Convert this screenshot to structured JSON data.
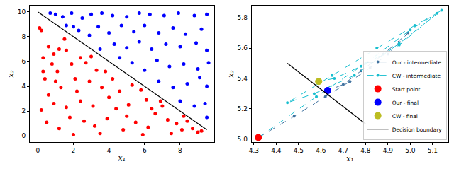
{
  "chart_data": [
    {
      "type": "scatter",
      "x_label": "x₁",
      "y_label": "x₂",
      "xlim": [
        -0.45,
        9.9
      ],
      "ylim": [
        -0.5,
        10.5
      ],
      "xticks": [
        0,
        2,
        4,
        6,
        8
      ],
      "yticks": [
        0,
        2,
        4,
        6,
        8,
        10
      ],
      "grid": false,
      "series": [
        {
          "type": "scatter",
          "color": "#ff0000",
          "marker": "circle",
          "x": [
            0.1,
            0.2,
            0.6,
            0.3,
            0.9,
            1.2,
            1.6,
            0.8,
            0.4,
            1.1,
            1.9,
            2.4,
            2.7,
            0.6,
            1.3,
            2.1,
            2.9,
            3.3,
            3.8,
            0.2,
            0.9,
            1.6,
            2.4,
            3.1,
            3.6,
            4.2,
            4.6,
            0.5,
            1.2,
            1.8,
            2.6,
            3.2,
            3.9,
            4.4,
            5.1,
            5.3,
            5.8,
            6.1,
            4.8,
            5.5,
            6.2,
            6.6,
            7.0,
            7.3,
            7.8,
            8.1,
            8.4,
            8.7,
            9.0,
            9.2,
            2.0,
            3.5,
            5.9,
            7.5,
            6.9,
            4.0,
            1.0,
            0.3,
            2.2,
            5.0,
            6.4,
            8.2,
            3.0,
            1.5
          ],
          "y": [
            8.7,
            8.5,
            7.2,
            6.3,
            6.6,
            7.0,
            6.9,
            5.8,
            4.6,
            5.2,
            5.8,
            6.3,
            5.9,
            3.3,
            3.9,
            4.6,
            4.4,
            5.3,
            5.2,
            2.1,
            2.6,
            2.3,
            2.8,
            2.4,
            3.9,
            4.6,
            3.6,
            1.1,
            0.6,
            1.5,
            1.2,
            0.8,
            1.4,
            2.2,
            2.5,
            4.1,
            3.7,
            2.9,
            0.5,
            1.1,
            0.7,
            1.8,
            2.4,
            1.3,
            1.0,
            0.5,
            1.2,
            0.6,
            0.3,
            0.4,
            0.1,
            0.2,
            0.1,
            0.2,
            2.8,
            3.1,
            4.4,
            5.2,
            3.6,
            1.6,
            2.2,
            1.6,
            6.4,
            7.8
          ]
        },
        {
          "type": "scatter",
          "color": "#0000ff",
          "marker": "circle",
          "x": [
            0.7,
            1.0,
            1.4,
            1.9,
            2.5,
            3.0,
            3.6,
            4.2,
            5.0,
            5.7,
            6.3,
            7.1,
            7.9,
            8.8,
            9.5,
            1.6,
            2.3,
            2.9,
            3.4,
            4.0,
            4.7,
            5.4,
            6.0,
            6.8,
            7.6,
            8.3,
            9.2,
            3.5,
            4.3,
            5.0,
            5.7,
            6.4,
            7.2,
            8.0,
            8.9,
            9.5,
            5.3,
            6.0,
            6.7,
            7.4,
            8.2,
            9.0,
            9.6,
            6.8,
            7.6,
            8.4,
            9.1,
            9.5,
            8.0,
            8.8,
            9.4,
            9.5,
            4.6,
            2.0
          ],
          "y": [
            9.9,
            9.8,
            9.6,
            9.9,
            9.5,
            9.8,
            9.9,
            9.7,
            9.6,
            9.9,
            9.8,
            9.7,
            9.9,
            9.7,
            9.8,
            8.9,
            8.5,
            8.1,
            8.8,
            8.3,
            8.9,
            8.4,
            8.9,
            8.3,
            8.7,
            8.2,
            8.6,
            7.0,
            7.4,
            7.1,
            7.6,
            7.0,
            7.4,
            7.2,
            7.5,
            6.9,
            5.9,
            5.3,
            6.1,
            5.6,
            5.8,
            5.4,
            5.9,
            4.4,
            3.9,
            4.2,
            4.7,
            4.0,
            2.8,
            2.4,
            2.6,
            1.5,
            6.3,
            8.8
          ]
        },
        {
          "type": "line",
          "color": "#000000",
          "line_style": "solid",
          "x": [
            0,
            9.5
          ],
          "y": [
            10,
            0.5
          ]
        }
      ]
    },
    {
      "type": "scatter",
      "x_label": "x₁",
      "y_label": "x₂",
      "xlim": [
        4.29,
        5.17
      ],
      "ylim": [
        4.98,
        5.88
      ],
      "xticks": [
        4.3,
        4.4,
        4.5,
        4.6,
        4.7,
        4.8,
        4.9,
        {
          "value": 5,
          "label": "5.0"
        },
        5.1
      ],
      "yticks": [
        {
          "value": 5,
          "label": "5.0"
        },
        5.2,
        5.4,
        5.6,
        5.8
      ],
      "grid": false,
      "legend": "lower right",
      "series": [
        {
          "name": "Our - intermediate",
          "type": "line",
          "color": "#41729f",
          "marker": "circle",
          "line_style": "dashed",
          "x": [
            4.32,
            4.48,
            4.62,
            4.73,
            4.82,
            4.9,
            4.99,
            4.88,
            4.78,
            4.7,
            4.63
          ],
          "y": [
            5.01,
            5.15,
            5.28,
            5.38,
            5.47,
            5.56,
            5.7,
            5.56,
            5.45,
            5.36,
            5.32
          ]
        },
        {
          "name": "CW - intermediate",
          "type": "line",
          "color": "#17becf",
          "marker": "circle",
          "line_style": "dashed",
          "x": [
            4.32,
            4.58,
            4.8,
            5.0,
            5.14,
            4.95,
            4.75,
            4.57,
            4.45,
            4.65,
            4.85,
            5.02,
            5.12,
            4.95,
            4.78,
            4.66,
            4.59
          ],
          "y": [
            5.01,
            5.28,
            5.5,
            5.72,
            5.85,
            5.63,
            5.42,
            5.3,
            5.24,
            5.42,
            5.6,
            5.75,
            5.83,
            5.62,
            5.48,
            5.4,
            5.38
          ]
        },
        {
          "name": "Start point",
          "type": "scatter",
          "color": "#ff0000",
          "marker": "circle",
          "x": [
            4.32
          ],
          "y": [
            5.01
          ]
        },
        {
          "name": "Our - final",
          "type": "scatter",
          "color": "#0000ff",
          "marker": "circle",
          "x": [
            4.63
          ],
          "y": [
            5.32
          ]
        },
        {
          "name": "CW - final",
          "type": "scatter",
          "color": "#bcbd22",
          "marker": "circle",
          "x": [
            4.59
          ],
          "y": [
            5.38
          ]
        },
        {
          "name": "Decision boundary",
          "type": "line",
          "color": "#000000",
          "line_style": "solid",
          "x": [
            4.45,
            4.8
          ],
          "y": [
            5.5,
            5.1
          ]
        }
      ]
    }
  ]
}
